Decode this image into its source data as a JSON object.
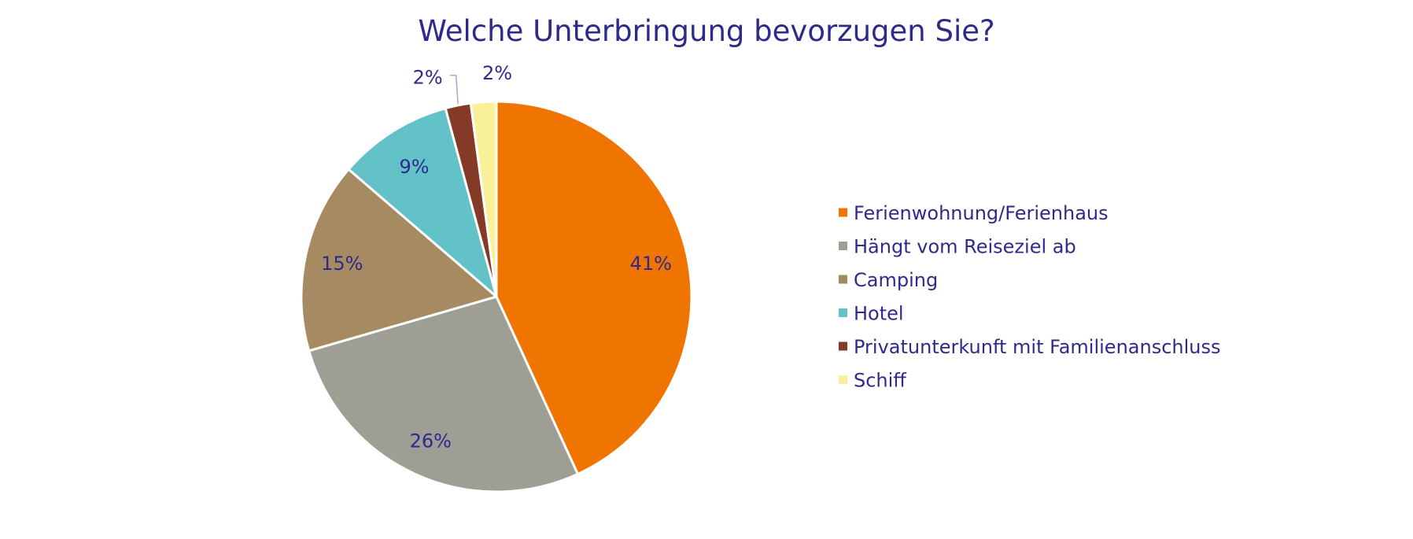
{
  "chart_data": {
    "type": "pie",
    "title": "Welche Unterbringung bevorzugen Sie?",
    "start_angle_deg": 0,
    "direction": "clockwise",
    "legend_position": "right",
    "slices": [
      {
        "label": "Ferienwohnung/Ferienhaus",
        "value": 41,
        "data_label": "41%",
        "color": "#F07400"
      },
      {
        "label": "Hängt vom Reiseziel ab",
        "value": 26,
        "data_label": "26%",
        "color": "#9F9E94"
      },
      {
        "label": "Camping",
        "value": 15,
        "data_label": "15%",
        "color": "#A68B62"
      },
      {
        "label": "Hotel",
        "value": 9,
        "data_label": "9%",
        "color": "#63C2C8"
      },
      {
        "label": "Privatunterkunft mit Familienanschluss",
        "value": 2,
        "data_label": "2%",
        "color": "#853A27"
      },
      {
        "label": "Schiff",
        "value": 2,
        "data_label": "2%",
        "color": "#F8F19A"
      }
    ]
  }
}
